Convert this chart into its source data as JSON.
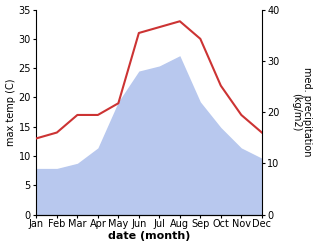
{
  "months": [
    "Jan",
    "Feb",
    "Mar",
    "Apr",
    "May",
    "Jun",
    "Jul",
    "Aug",
    "Sep",
    "Oct",
    "Nov",
    "Dec"
  ],
  "x": [
    0,
    1,
    2,
    3,
    4,
    5,
    6,
    7,
    8,
    9,
    10,
    11
  ],
  "temperature": [
    13,
    14,
    17,
    17,
    19,
    31,
    32,
    33,
    30,
    22,
    17,
    14
  ],
  "precipitation": [
    9,
    9,
    10,
    13,
    22,
    28,
    29,
    31,
    22,
    17,
    13,
    11
  ],
  "temp_color": "#cc3333",
  "precip_color": "#b8c8ee",
  "background_color": "#ffffff",
  "ylabel_left": "max temp (C)",
  "ylabel_right": "med. precipitation\n(kg/m2)",
  "xlabel": "date (month)",
  "ylim_left": [
    0,
    35
  ],
  "ylim_right": [
    0,
    40
  ],
  "yticks_left": [
    0,
    5,
    10,
    15,
    20,
    25,
    30,
    35
  ],
  "yticks_right": [
    0,
    10,
    20,
    30,
    40
  ],
  "label_fontsize": 7,
  "tick_fontsize": 7,
  "xlabel_fontsize": 8,
  "linewidth": 1.5
}
